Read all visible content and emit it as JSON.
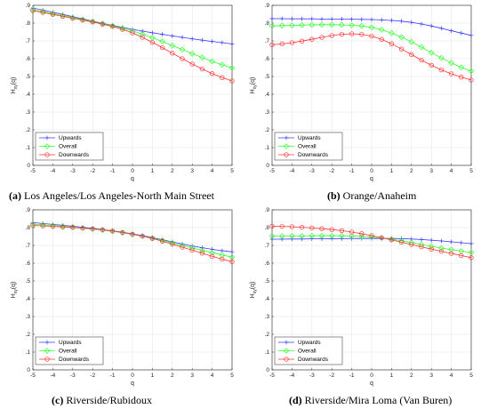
{
  "captions": [
    {
      "letter": "(a)",
      "text": "Los Angeles/Los Angeles-North Main Street"
    },
    {
      "letter": "(b)",
      "text": "Orange/Anaheim"
    },
    {
      "letter": "(c)",
      "text": "Riverside/Rubidoux"
    },
    {
      "letter": "(d)",
      "text": "Riverside/Mira Loma (Van Buren)"
    }
  ],
  "colors": {
    "upwards": "#3a3aff",
    "overall": "#33ff33",
    "downwards": "#ff3333"
  },
  "chart_data": [
    {
      "type": "line",
      "xlabel": "q",
      "ylabel": "H_xy(q)",
      "xlim": [
        -5,
        5
      ],
      "ylim": [
        0,
        0.9
      ],
      "xticks": [
        -5,
        -4,
        -3,
        -2,
        -1,
        0,
        1,
        2,
        3,
        4,
        5
      ],
      "yticks": [
        0,
        0.1,
        0.2,
        0.3,
        0.4,
        0.5,
        0.6,
        0.7,
        0.8,
        0.9
      ],
      "grid": true,
      "legend": "bottom-left",
      "x": [
        -5,
        -4.5,
        -4,
        -3.5,
        -3,
        -2.5,
        -2,
        -1.5,
        -1,
        -0.5,
        0,
        0.5,
        1,
        1.5,
        2,
        2.5,
        3,
        3.5,
        4,
        4.5,
        5
      ],
      "series": [
        {
          "name": "Upwards",
          "marker": "plus",
          "values": [
            0.885,
            0.873,
            0.861,
            0.849,
            0.836,
            0.824,
            0.811,
            0.799,
            0.787,
            0.776,
            0.765,
            0.755,
            0.746,
            0.737,
            0.728,
            0.72,
            0.712,
            0.704,
            0.697,
            0.69,
            0.683
          ]
        },
        {
          "name": "Overall",
          "marker": "diamond",
          "values": [
            0.875,
            0.864,
            0.853,
            0.842,
            0.831,
            0.82,
            0.809,
            0.797,
            0.785,
            0.771,
            0.756,
            0.738,
            0.718,
            0.697,
            0.674,
            0.651,
            0.628,
            0.606,
            0.585,
            0.566,
            0.548
          ]
        },
        {
          "name": "Downwards",
          "marker": "circle",
          "values": [
            0.87,
            0.86,
            0.849,
            0.838,
            0.827,
            0.817,
            0.806,
            0.794,
            0.781,
            0.765,
            0.745,
            0.72,
            0.692,
            0.662,
            0.631,
            0.6,
            0.57,
            0.542,
            0.516,
            0.494,
            0.475
          ]
        }
      ]
    },
    {
      "type": "line",
      "xlabel": "q",
      "ylabel": "H_xy(q)",
      "xlim": [
        -5,
        5
      ],
      "ylim": [
        0,
        0.9
      ],
      "xticks": [
        -5,
        -4,
        -3,
        -2,
        -1,
        0,
        1,
        2,
        3,
        4,
        5
      ],
      "yticks": [
        0,
        0.1,
        0.2,
        0.3,
        0.4,
        0.5,
        0.6,
        0.7,
        0.8,
        0.9
      ],
      "grid": true,
      "legend": "bottom-left",
      "x": [
        -5,
        -4.5,
        -4,
        -3.5,
        -3,
        -2.5,
        -2,
        -1.5,
        -1,
        -0.5,
        0,
        0.5,
        1,
        1.5,
        2,
        2.5,
        3,
        3.5,
        4,
        4.5,
        5
      ],
      "series": [
        {
          "name": "Upwards",
          "marker": "plus",
          "values": [
            0.825,
            0.825,
            0.824,
            0.824,
            0.824,
            0.823,
            0.823,
            0.823,
            0.822,
            0.821,
            0.82,
            0.818,
            0.815,
            0.811,
            0.804,
            0.795,
            0.784,
            0.771,
            0.757,
            0.744,
            0.731
          ]
        },
        {
          "name": "Overall",
          "marker": "diamond",
          "values": [
            0.784,
            0.786,
            0.787,
            0.789,
            0.79,
            0.791,
            0.791,
            0.79,
            0.788,
            0.784,
            0.776,
            0.763,
            0.744,
            0.721,
            0.694,
            0.665,
            0.634,
            0.604,
            0.576,
            0.551,
            0.53
          ]
        },
        {
          "name": "Downwards",
          "marker": "circle",
          "values": [
            0.678,
            0.683,
            0.69,
            0.699,
            0.709,
            0.72,
            0.73,
            0.737,
            0.74,
            0.737,
            0.727,
            0.709,
            0.684,
            0.654,
            0.623,
            0.592,
            0.563,
            0.537,
            0.515,
            0.496,
            0.48
          ]
        }
      ]
    },
    {
      "type": "line",
      "xlabel": "q",
      "ylabel": "H_xy(q)",
      "xlim": [
        -5,
        5
      ],
      "ylim": [
        0,
        0.9
      ],
      "xticks": [
        -5,
        -4,
        -3,
        -2,
        -1,
        0,
        1,
        2,
        3,
        4,
        5
      ],
      "yticks": [
        0,
        0.1,
        0.2,
        0.3,
        0.4,
        0.5,
        0.6,
        0.7,
        0.8,
        0.9
      ],
      "grid": true,
      "legend": "bottom-left",
      "x": [
        -5,
        -4.5,
        -4,
        -3.5,
        -3,
        -2.5,
        -2,
        -1.5,
        -1,
        -0.5,
        0,
        0.5,
        1,
        1.5,
        2,
        2.5,
        3,
        3.5,
        4,
        4.5,
        5
      ],
      "series": [
        {
          "name": "Upwards",
          "marker": "plus",
          "values": [
            0.828,
            0.823,
            0.818,
            0.813,
            0.808,
            0.802,
            0.796,
            0.789,
            0.782,
            0.774,
            0.765,
            0.755,
            0.744,
            0.732,
            0.72,
            0.708,
            0.697,
            0.687,
            0.678,
            0.67,
            0.664
          ]
        },
        {
          "name": "Overall",
          "marker": "diamond",
          "values": [
            0.82,
            0.816,
            0.812,
            0.808,
            0.803,
            0.797,
            0.792,
            0.786,
            0.779,
            0.771,
            0.762,
            0.752,
            0.741,
            0.728,
            0.714,
            0.7,
            0.686,
            0.672,
            0.659,
            0.646,
            0.634
          ]
        },
        {
          "name": "Downwards",
          "marker": "circle",
          "values": [
            0.812,
            0.81,
            0.807,
            0.804,
            0.801,
            0.797,
            0.793,
            0.788,
            0.781,
            0.773,
            0.763,
            0.752,
            0.739,
            0.724,
            0.707,
            0.69,
            0.673,
            0.656,
            0.639,
            0.623,
            0.608
          ]
        }
      ]
    },
    {
      "type": "line",
      "xlabel": "q",
      "ylabel": "H_xy(q)",
      "xlim": [
        -5,
        5
      ],
      "ylim": [
        0,
        0.9
      ],
      "xticks": [
        -5,
        -4,
        -3,
        -2,
        -1,
        0,
        1,
        2,
        3,
        4,
        5
      ],
      "yticks": [
        0,
        0.1,
        0.2,
        0.3,
        0.4,
        0.5,
        0.6,
        0.7,
        0.8,
        0.9
      ],
      "grid": true,
      "legend": "bottom-left",
      "x": [
        -5,
        -4.5,
        -4,
        -3.5,
        -3,
        -2.5,
        -2,
        -1.5,
        -1,
        -0.5,
        0,
        0.5,
        1,
        1.5,
        2,
        2.5,
        3,
        3.5,
        4,
        4.5,
        5
      ],
      "series": [
        {
          "name": "Upwards",
          "marker": "plus",
          "values": [
            0.735,
            0.735,
            0.736,
            0.736,
            0.737,
            0.737,
            0.738,
            0.738,
            0.739,
            0.739,
            0.739,
            0.739,
            0.739,
            0.738,
            0.736,
            0.733,
            0.729,
            0.725,
            0.72,
            0.715,
            0.71
          ]
        },
        {
          "name": "Overall",
          "marker": "diamond",
          "values": [
            0.752,
            0.752,
            0.753,
            0.753,
            0.754,
            0.754,
            0.754,
            0.754,
            0.753,
            0.751,
            0.747,
            0.742,
            0.735,
            0.726,
            0.716,
            0.705,
            0.695,
            0.685,
            0.676,
            0.668,
            0.66
          ]
        },
        {
          "name": "Downwards",
          "marker": "circle",
          "values": [
            0.808,
            0.807,
            0.805,
            0.802,
            0.798,
            0.794,
            0.789,
            0.783,
            0.775,
            0.766,
            0.755,
            0.743,
            0.731,
            0.718,
            0.705,
            0.692,
            0.679,
            0.667,
            0.655,
            0.643,
            0.631
          ]
        }
      ]
    }
  ]
}
